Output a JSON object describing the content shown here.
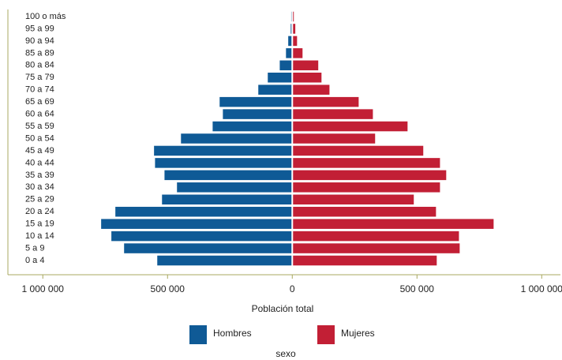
{
  "chart_data": {
    "type": "pyramid",
    "categories": [
      "0 a 4",
      "5 a 9",
      "10 a 14",
      "15 a 19",
      "20 a 24",
      "25 a 29",
      "30 a 34",
      "35 a 39",
      "40 a 44",
      "45 a 49",
      "50 a 54",
      "55 a 59",
      "60 a 64",
      "65 a 69",
      "70 a 74",
      "75 a 79",
      "80 a 84",
      "85 a 89",
      "90 a 94",
      "95 a 99",
      "100 o más"
    ],
    "series": [
      {
        "name": "Hombres",
        "color": "#0f5a96",
        "side": "left",
        "values": [
          538000,
          671000,
          722000,
          763000,
          706000,
          519000,
          459000,
          509000,
          547000,
          551000,
          443000,
          316000,
          275000,
          288000,
          133000,
          95000,
          47000,
          22000,
          13000,
          3000,
          1000
        ]
      },
      {
        "name": "Mujeres",
        "color": "#c21f35",
        "side": "right",
        "values": [
          576000,
          668000,
          665000,
          804000,
          573000,
          484000,
          589000,
          614000,
          589000,
          522000,
          329000,
          459000,
          320000,
          263000,
          146000,
          114000,
          101000,
          38000,
          16000,
          9000,
          3000
        ]
      }
    ],
    "xlabel": "Población total",
    "legend_title": "sexo",
    "xlim": [
      -1140000,
      1075000
    ],
    "xticks": [
      {
        "value": -1000000,
        "label": "1 000 000"
      },
      {
        "value": -500000,
        "label": "500 000"
      },
      0,
      {
        "value": 500000,
        "label": "500 000"
      },
      {
        "value": 1000000,
        "label": "1 000 000"
      }
    ]
  }
}
